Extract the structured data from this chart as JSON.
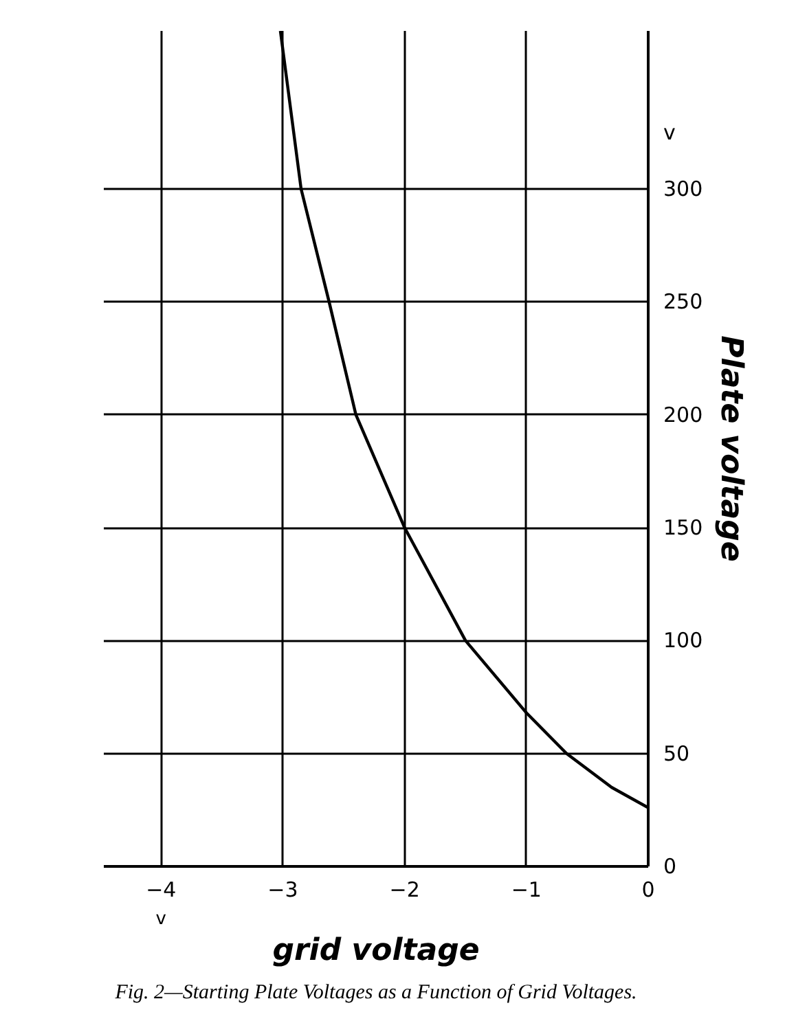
{
  "chart_data": {
    "type": "line",
    "xlabel": "grid voltage",
    "ylabel": "Plate voltage",
    "x": [
      -3.02,
      -2.85,
      -2.62,
      -2.4,
      -2.0,
      -1.5,
      -1.0,
      -0.67,
      -0.3,
      0
    ],
    "series": [
      {
        "color": "#000000",
        "values": [
          370,
          300,
          250,
          200,
          150,
          100,
          68,
          50,
          35,
          26
        ]
      }
    ],
    "xlim": [
      -4.47,
      0
    ],
    "ylim": [
      0,
      370
    ],
    "xticks": [
      -4,
      -3,
      -2,
      -1,
      0
    ],
    "yticks": [
      0,
      50,
      100,
      150,
      200,
      250,
      300
    ],
    "grid": true,
    "marker": "none",
    "line_style": "solid",
    "annotations": [
      "v",
      "v",
      "Fig. 2—Starting Plate Voltages as a Function of Grid Voltages."
    ]
  }
}
